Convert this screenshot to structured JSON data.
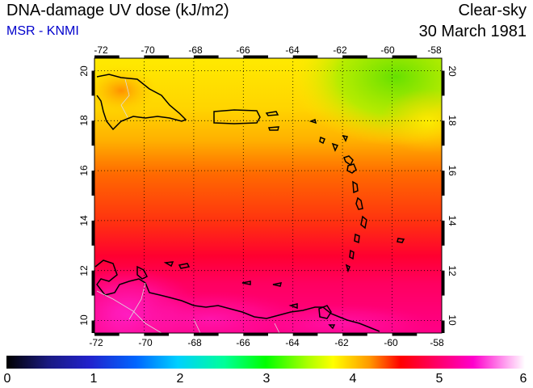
{
  "header": {
    "title": "DNA-damage UV dose (kJ/m2)",
    "source": "MSR - KNMI",
    "condition": "Clear-sky",
    "date": "30 March 1981"
  },
  "map": {
    "lon_ticks": [
      "-72",
      "-70",
      "-68",
      "-66",
      "-64",
      "-62",
      "-60",
      "-58"
    ],
    "lat_ticks": [
      "20",
      "18",
      "16",
      "14",
      "12",
      "10"
    ],
    "lon_range": [
      -72,
      -58
    ],
    "lat_range": [
      9.5,
      20.5
    ],
    "grid": "dotted"
  },
  "colorbar": {
    "ticks": [
      "0",
      "1",
      "2",
      "3",
      "4",
      "5",
      "6"
    ],
    "range": [
      0,
      6
    ],
    "colors": [
      "#000000",
      "#2222cc",
      "#00c8ff",
      "#00ff66",
      "#ffff00",
      "#ff0000",
      "#ff00cc",
      "#ffffff"
    ]
  }
}
